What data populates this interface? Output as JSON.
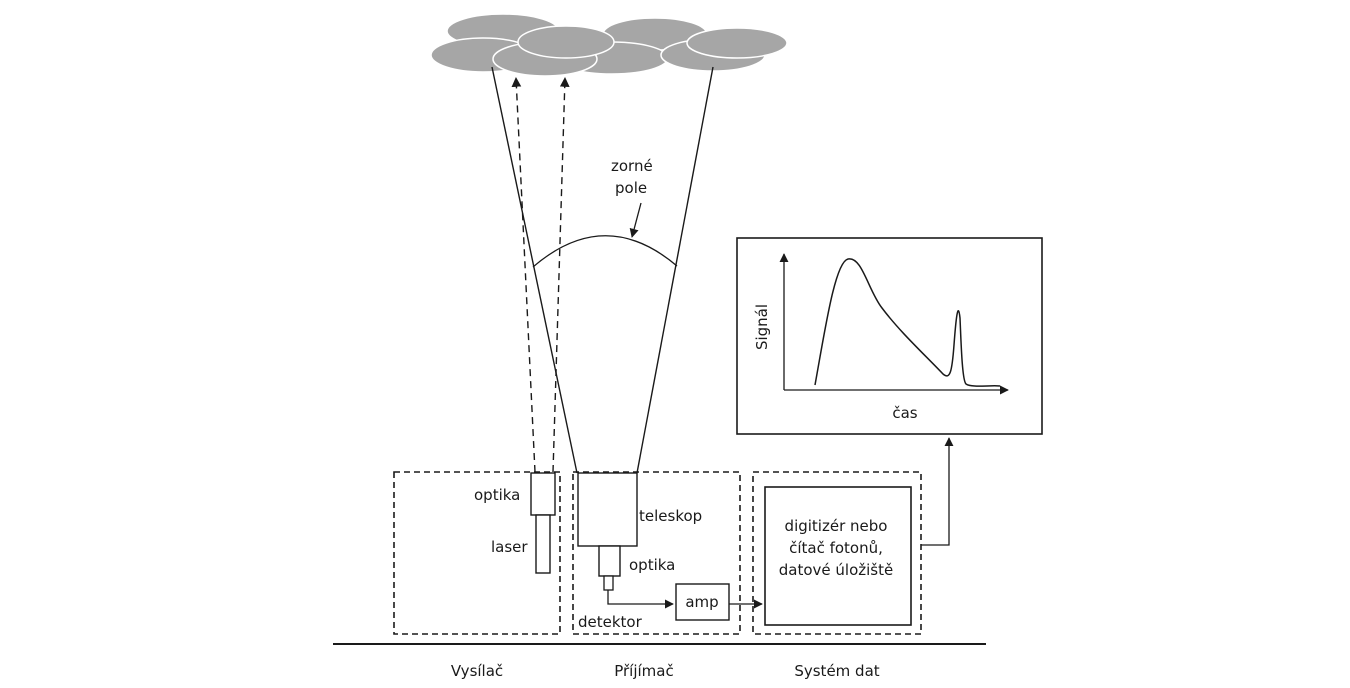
{
  "field_of_view": {
    "line1": "zorné",
    "line2": "pole"
  },
  "transmitter": {
    "label": "Vysílač",
    "optics_label": "optika",
    "laser_label": "laser"
  },
  "receiver": {
    "label": "Příjímač",
    "telescope_label": "teleskop",
    "optics_label": "optika",
    "detector_label": "detektor",
    "amp_label": "amp"
  },
  "data_system": {
    "label": "Systém dat",
    "box_line1": "digitizér nebo",
    "box_line2": "čítač fotonů,",
    "box_line3": "datové úložiště"
  },
  "signal_plot": {
    "y_label": "Signál",
    "x_label": "čas"
  },
  "colors": {
    "cloud": "#a6a6a6",
    "line": "#1a1a1a"
  }
}
